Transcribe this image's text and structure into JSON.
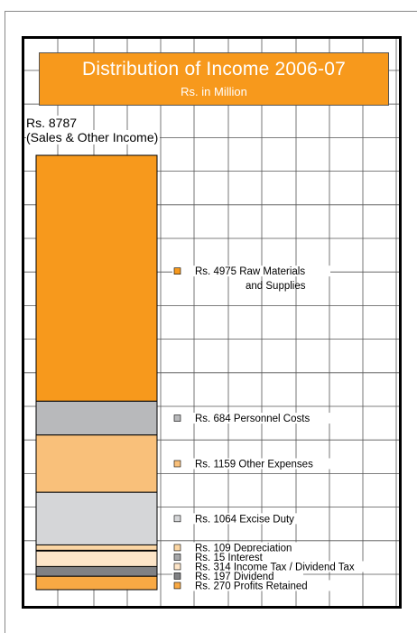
{
  "chart_data": {
    "type": "bar",
    "title": "Distribution of Income 2006-07",
    "subtitle": "Rs. in Million",
    "total_label": "Rs. 8787",
    "total_sublabel": "(Sales & Other Income)",
    "total": 8787,
    "segments": [
      {
        "value": 4975,
        "prefix": "Rs.",
        "amount": "4975",
        "label": "Raw Materials",
        "label2": "and Supplies",
        "color": "#f7991c"
      },
      {
        "value": 684,
        "prefix": "Rs.",
        "amount": "684",
        "label": "Personnel Costs",
        "color": "#b8b9bb"
      },
      {
        "value": 1159,
        "prefix": "Rs.",
        "amount": "1159",
        "label": "Other Expenses",
        "color": "#f9c07a"
      },
      {
        "value": 1064,
        "prefix": "Rs.",
        "amount": "1064",
        "label": "Excise Duty",
        "color": "#d5d6d8"
      },
      {
        "value": 109,
        "prefix": "Rs.",
        "amount": "109",
        "label": "Depreciation",
        "color": "#fbd6a4"
      },
      {
        "value": 15,
        "prefix": "Rs.",
        "amount": "15",
        "label": "Interest",
        "color": "#a6a7a9"
      },
      {
        "value": 314,
        "prefix": "Rs.",
        "amount": "314",
        "label": "Income Tax / Dividend Tax",
        "color": "#fde5c8"
      },
      {
        "value": 197,
        "prefix": "Rs.",
        "amount": "197",
        "label": "Dividend",
        "color": "#808184"
      },
      {
        "value": 270,
        "prefix": "Rs.",
        "amount": "270",
        "label": "Profits Retained",
        "color": "#f8a944"
      }
    ],
    "grid": true,
    "legend": "right"
  }
}
